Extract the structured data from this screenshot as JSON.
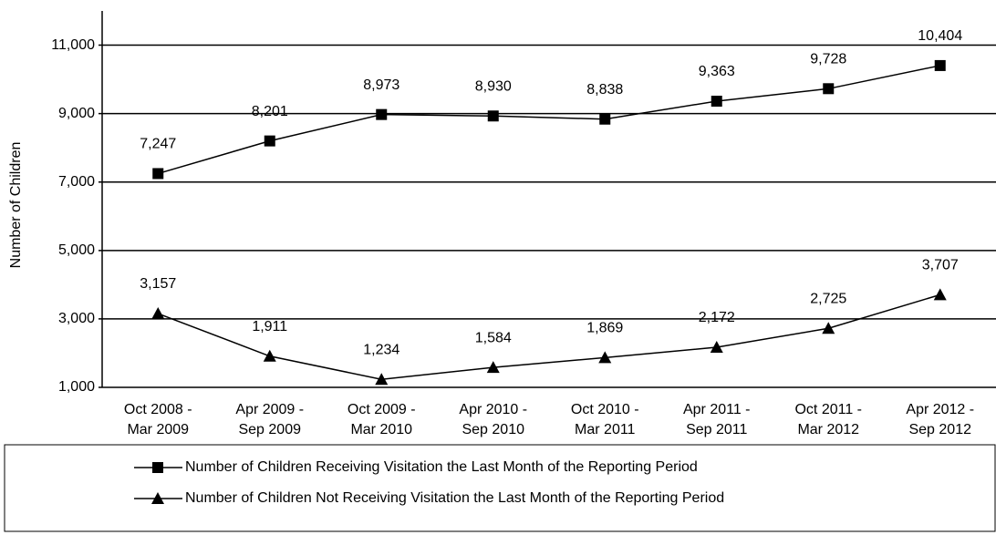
{
  "chart_data": {
    "type": "line",
    "y_label": "Number of Children",
    "categories": [
      [
        "Oct 2008 -",
        "Mar 2009"
      ],
      [
        "Apr 2009 -",
        "Sep 2009"
      ],
      [
        "Oct 2009 -",
        "Mar 2010"
      ],
      [
        "Apr 2010 -",
        "Sep 2010"
      ],
      [
        "Oct 2010 -",
        "Mar 2011"
      ],
      [
        "Apr 2011 -",
        "Sep 2011"
      ],
      [
        "Oct 2011 -",
        "Mar 2012"
      ],
      [
        "Apr 2012 -",
        "Sep 2012"
      ]
    ],
    "series": [
      {
        "name": "Number of Children Receiving Visitation the Last Month of the Reporting Period",
        "color": "#000000",
        "marker": "square",
        "values": [
          7247,
          8201,
          8973,
          8930,
          8838,
          9363,
          9728,
          10404
        ],
        "value_labels": [
          "7,247",
          "8,201",
          "8,973",
          "8,930",
          "8,838",
          "9,363",
          "9,728",
          "10,404"
        ]
      },
      {
        "name": "Number of Children Not Receiving Visitation the Last Month of the Reporting Period",
        "color": "#000000",
        "marker": "triangle",
        "values": [
          3157,
          1911,
          1234,
          1584,
          1869,
          2172,
          2725,
          3707
        ],
        "value_labels": [
          "3,157",
          "1,911",
          "1,234",
          "1,584",
          "1,869",
          "2,172",
          "2,725",
          "3,707"
        ]
      }
    ],
    "ylim": [
      1000,
      12000
    ],
    "yticks": [
      {
        "value": 1000,
        "label": "1,000"
      },
      {
        "value": 3000,
        "label": "3,000"
      },
      {
        "value": 5000,
        "label": "5,000"
      },
      {
        "value": 7000,
        "label": "7,000"
      },
      {
        "value": 9000,
        "label": "9,000"
      },
      {
        "value": 11000,
        "label": "11,000"
      }
    ],
    "grid": true
  }
}
